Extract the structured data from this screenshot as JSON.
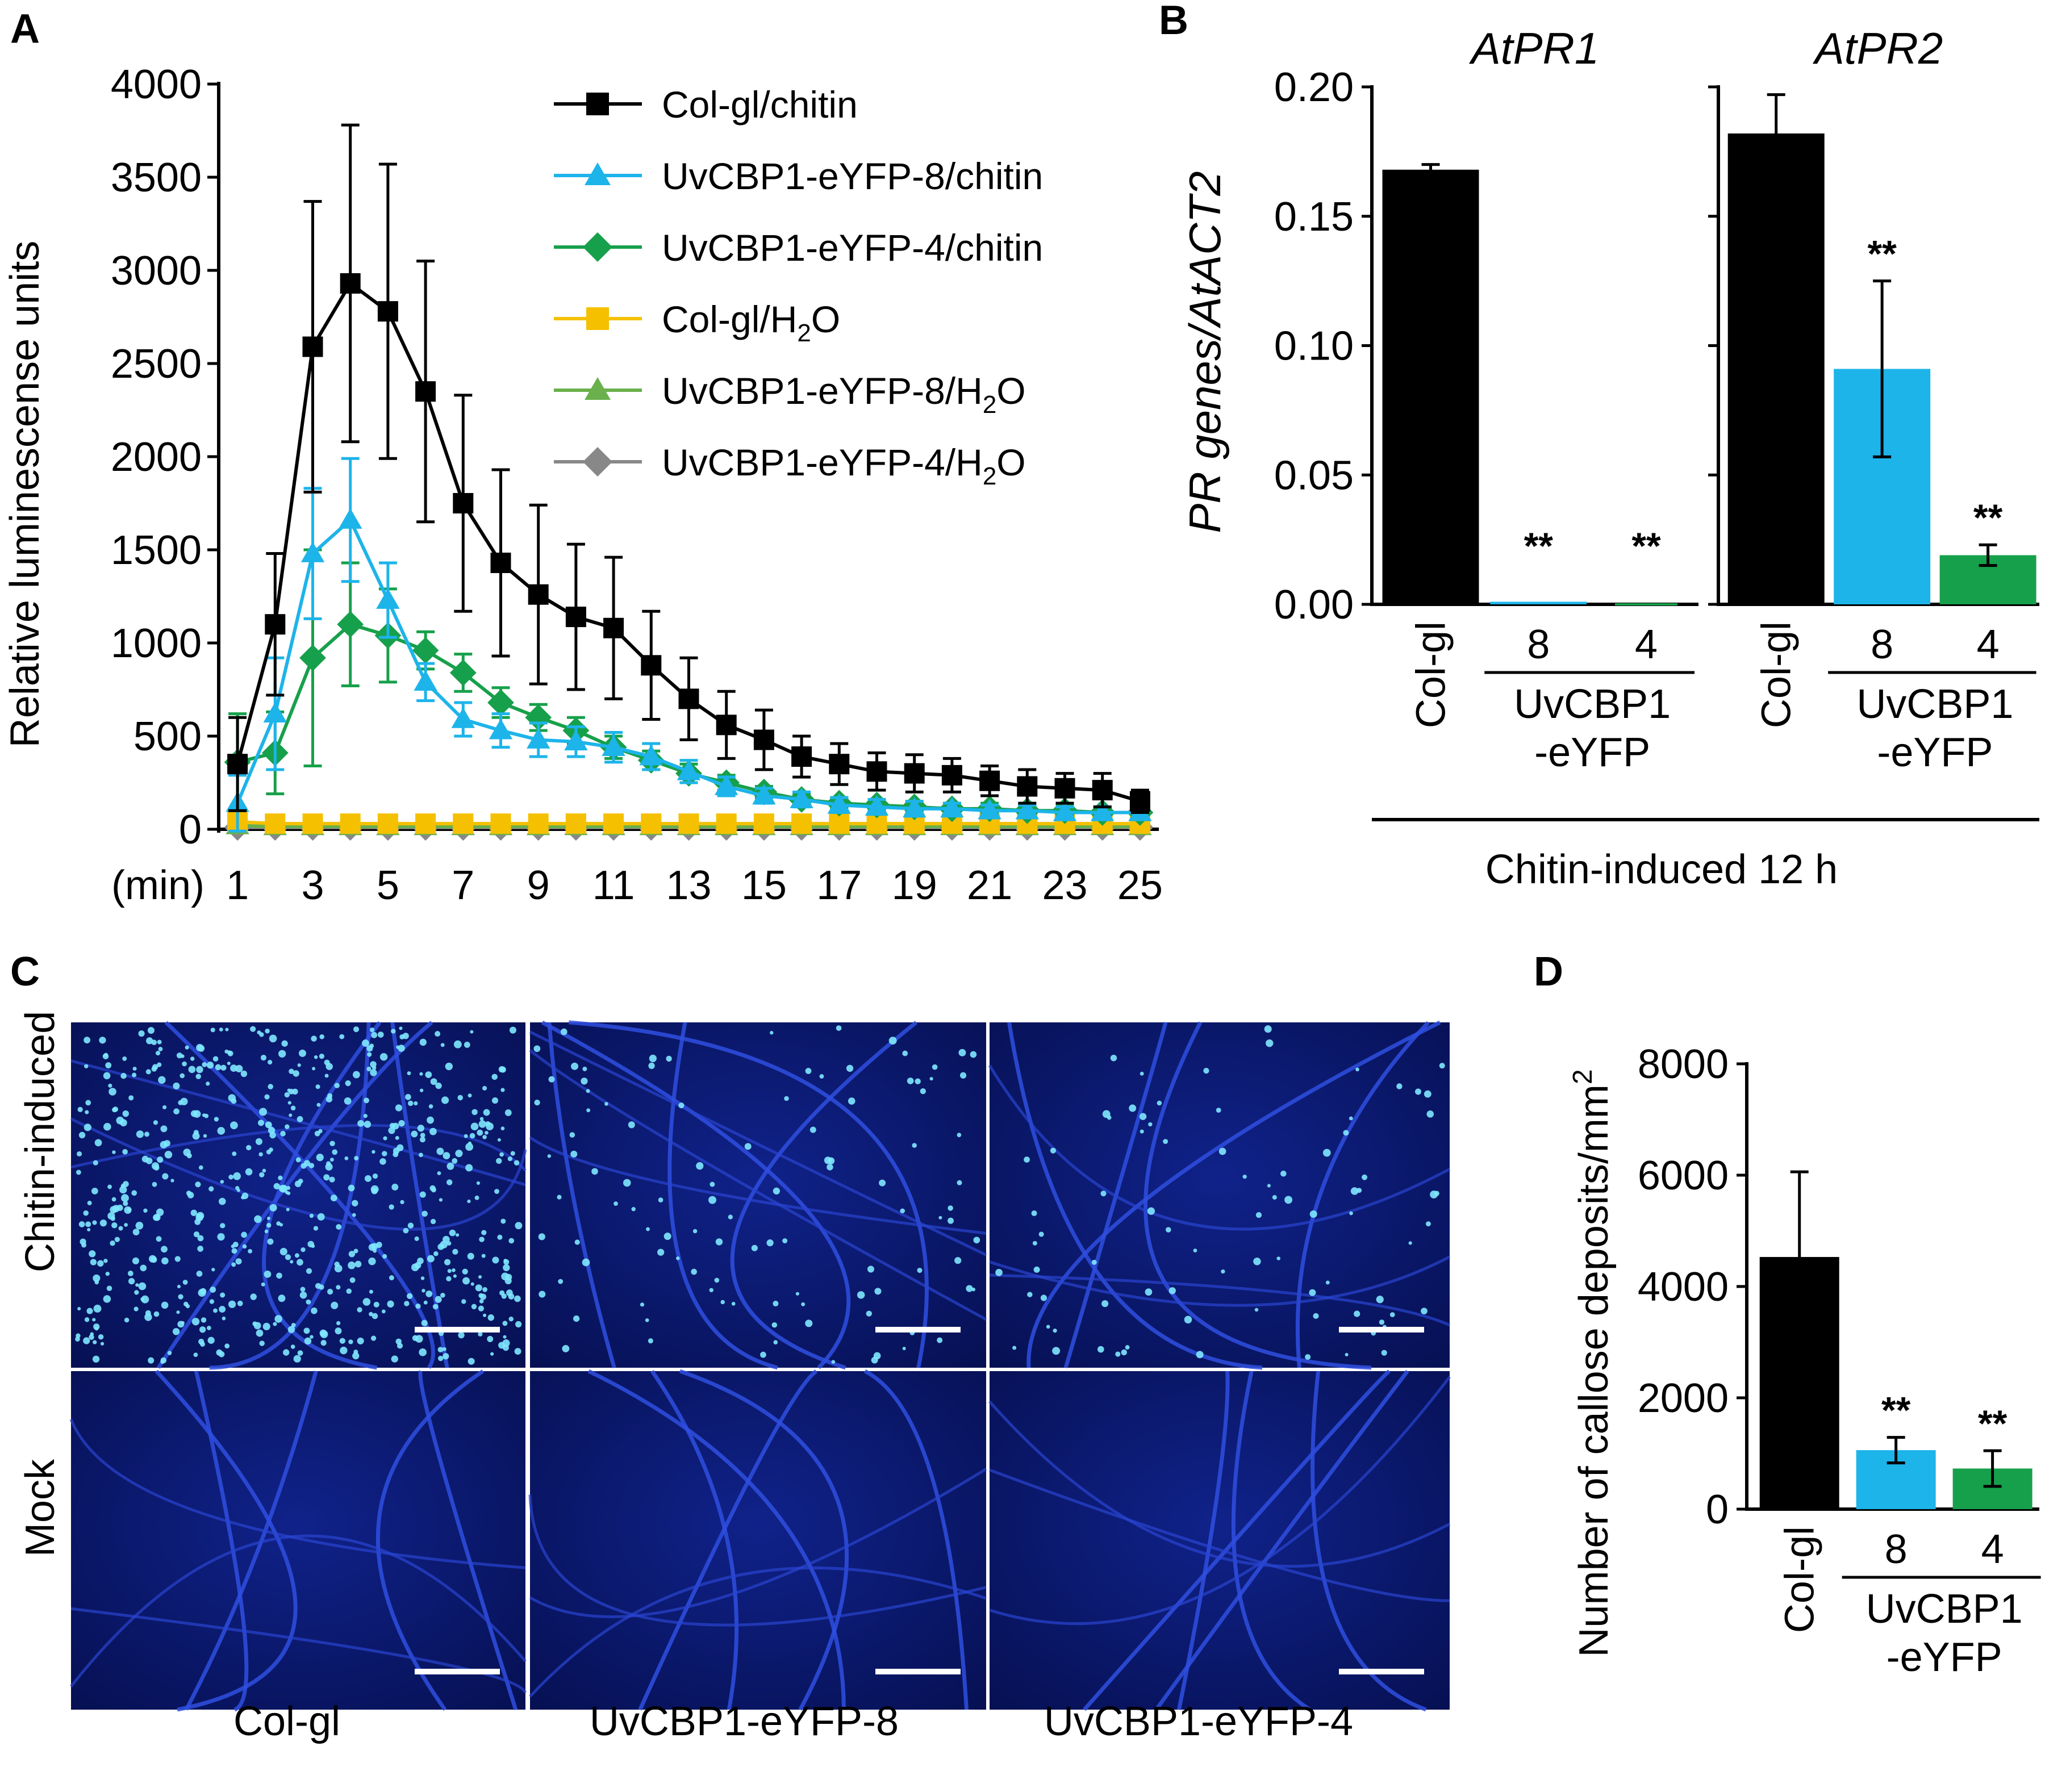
{
  "panels": {
    "a": "A",
    "b": "B",
    "c": "C",
    "d": "D"
  },
  "colors": {
    "black": "#000000",
    "cyan": "#1db4ea",
    "green": "#17a04b",
    "yellow": "#f5c000",
    "lightgreen": "#6ab04c",
    "gray": "#888888"
  },
  "chart_data": [
    {
      "id": "A",
      "type": "line",
      "ylabel": "Relative luminescense units",
      "xlabel_unit": "(min)",
      "ylim": [
        0,
        4000
      ],
      "xlim": [
        0.5,
        25.5
      ],
      "yticks": [
        0,
        500,
        1000,
        1500,
        2000,
        2500,
        3000,
        3500,
        4000
      ],
      "xticks": [
        1,
        3,
        5,
        7,
        9,
        11,
        13,
        15,
        17,
        19,
        21,
        23,
        25
      ],
      "x": [
        1,
        2,
        3,
        4,
        5,
        6,
        7,
        8,
        9,
        10,
        11,
        12,
        13,
        14,
        15,
        16,
        17,
        18,
        19,
        20,
        21,
        22,
        23,
        24,
        25
      ],
      "series": [
        {
          "name": "Col-gl/chitin",
          "legend_main": "Col-gl/chitin",
          "legend_sub": "",
          "legend_tail": "",
          "color": "#000000",
          "marker": "square",
          "values": [
            350,
            1100,
            2590,
            2930,
            2780,
            2350,
            1750,
            1430,
            1260,
            1140,
            1080,
            880,
            700,
            560,
            480,
            390,
            350,
            310,
            300,
            290,
            260,
            230,
            220,
            210,
            150
          ],
          "errors": [
            250,
            380,
            780,
            850,
            790,
            700,
            580,
            500,
            480,
            390,
            380,
            290,
            220,
            180,
            160,
            110,
            110,
            100,
            100,
            90,
            80,
            90,
            80,
            90,
            60
          ]
        },
        {
          "name": "UvCBP1-eYFP-8/chitin",
          "legend_main": "UvCBP1-eYFP-8/chitin",
          "legend_sub": "",
          "legend_tail": "",
          "color": "#1db4ea",
          "marker": "triangle",
          "values": [
            140,
            620,
            1480,
            1660,
            1230,
            790,
            590,
            530,
            480,
            470,
            440,
            390,
            310,
            230,
            180,
            160,
            130,
            120,
            110,
            110,
            100,
            100,
            90,
            90,
            90
          ],
          "errors": [
            150,
            300,
            350,
            330,
            200,
            100,
            90,
            90,
            90,
            80,
            80,
            70,
            60,
            50,
            40,
            40,
            40,
            40,
            40,
            30,
            30,
            30,
            30,
            30,
            30
          ]
        },
        {
          "name": "UvCBP1-eYFP-4/chitin",
          "legend_main": "UvCBP1-eYFP-4/chitin",
          "legend_sub": "",
          "legend_tail": "",
          "color": "#17a04b",
          "marker": "diamond",
          "values": [
            360,
            410,
            920,
            1100,
            1040,
            960,
            840,
            680,
            600,
            530,
            440,
            370,
            300,
            250,
            200,
            160,
            140,
            130,
            120,
            110,
            110,
            100,
            100,
            90,
            90
          ],
          "errors": [
            260,
            220,
            580,
            330,
            250,
            100,
            100,
            80,
            70,
            70,
            60,
            50,
            50,
            40,
            30,
            30,
            30,
            30,
            30,
            30,
            30,
            30,
            30,
            30,
            30
          ]
        },
        {
          "name": "Col-gl/H2O",
          "legend_main": "Col-gl/H",
          "legend_sub": "2",
          "legend_tail": "O",
          "color": "#f5c000",
          "marker": "square",
          "values": [
            40,
            30,
            30,
            30,
            30,
            30,
            30,
            30,
            30,
            30,
            30,
            30,
            30,
            30,
            30,
            30,
            30,
            30,
            30,
            30,
            30,
            30,
            30,
            30,
            30
          ],
          "errors": [
            0,
            0,
            0,
            0,
            0,
            0,
            0,
            0,
            0,
            0,
            0,
            0,
            0,
            0,
            0,
            0,
            0,
            0,
            0,
            0,
            0,
            0,
            0,
            0,
            0
          ]
        },
        {
          "name": "UvCBP1-eYFP-8/H2O",
          "legend_main": "UvCBP1-eYFP-8/H",
          "legend_sub": "2",
          "legend_tail": "O",
          "color": "#6ab04c",
          "marker": "triangle",
          "values": [
            20,
            15,
            15,
            15,
            15,
            15,
            15,
            15,
            15,
            15,
            15,
            15,
            15,
            15,
            15,
            15,
            15,
            15,
            15,
            15,
            15,
            15,
            15,
            15,
            15
          ],
          "errors": [
            0,
            0,
            0,
            0,
            0,
            0,
            0,
            0,
            0,
            0,
            0,
            0,
            0,
            0,
            0,
            0,
            0,
            0,
            0,
            0,
            0,
            0,
            0,
            0,
            0
          ]
        },
        {
          "name": "UvCBP1-eYFP-4/H2O",
          "legend_main": "UvCBP1-eYFP-4/H",
          "legend_sub": "2",
          "legend_tail": "O",
          "color": "#888888",
          "marker": "diamond",
          "values": [
            10,
            10,
            10,
            10,
            10,
            10,
            10,
            10,
            10,
            10,
            10,
            10,
            10,
            10,
            10,
            10,
            10,
            10,
            10,
            10,
            10,
            10,
            10,
            10,
            10
          ],
          "errors": [
            0,
            0,
            0,
            0,
            0,
            0,
            0,
            0,
            0,
            0,
            0,
            0,
            0,
            0,
            0,
            0,
            0,
            0,
            0,
            0,
            0,
            0,
            0,
            0,
            0
          ]
        }
      ]
    },
    {
      "id": "B",
      "type": "bar",
      "ylabel_italic": "PR genes/AtACT2",
      "ylim": [
        0,
        0.2
      ],
      "yticks": [
        "0.00",
        "0.05",
        "0.10",
        "0.15",
        "0.20"
      ],
      "group_label": "Chitin-induced 12 h",
      "subplots": [
        {
          "title": "AtPR1",
          "categories": [
            "Col-gl",
            "8",
            "4"
          ],
          "genotype_label": [
            "UvCBP1",
            "-eYFP"
          ],
          "values": [
            0.168,
            0.001,
            0.0
          ],
          "errors": [
            0.002,
            0.0,
            0.0
          ],
          "colors": [
            "#000000",
            "#1db4ea",
            "#17a04b"
          ],
          "significance": [
            "",
            "**",
            "**"
          ]
        },
        {
          "title": "AtPR2",
          "categories": [
            "Col-gl",
            "8",
            "4"
          ],
          "genotype_label": [
            "UvCBP1",
            "-eYFP"
          ],
          "values": [
            0.182,
            0.091,
            0.019
          ],
          "errors": [
            0.015,
            0.034,
            0.004
          ],
          "colors": [
            "#000000",
            "#1db4ea",
            "#17a04b"
          ],
          "significance": [
            "",
            "**",
            "**"
          ]
        }
      ]
    },
    {
      "id": "D",
      "type": "bar",
      "ylabel": "Number of callose deposits/mm",
      "ylabel_sup": "2",
      "ylim": [
        0,
        8000
      ],
      "yticks": [
        "0",
        "2000",
        "4000",
        "6000",
        "8000"
      ],
      "categories": [
        "Col-gl",
        "8",
        "4"
      ],
      "genotype_label": [
        "UvCBP1",
        "-eYFP"
      ],
      "values": [
        4530,
        1060,
        730
      ],
      "errors": [
        1530,
        230,
        320
      ],
      "colors": [
        "#000000",
        "#1db4ea",
        "#17a04b"
      ],
      "significance": [
        "",
        "**",
        "**"
      ]
    }
  ],
  "panel_c": {
    "row_labels": [
      "Chitin-induced",
      "Mock"
    ],
    "column_labels": [
      "Col-gl",
      "UvCBP1-eYFP-8",
      "UvCBP1-eYFP-4"
    ],
    "callose_dot_density": [
      [
        0.9,
        0.15,
        0.12
      ],
      [
        0.0,
        0.0,
        0.0
      ]
    ]
  }
}
